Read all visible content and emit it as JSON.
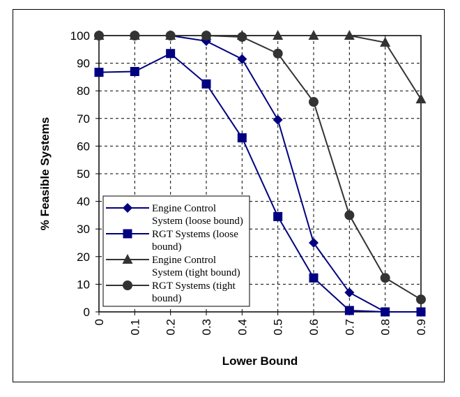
{
  "chart_data": {
    "type": "line",
    "title": "",
    "xlabel": "Lower Bound",
    "ylabel": "% Feasible Systems",
    "x": [
      0,
      0.1,
      0.2,
      0.3,
      0.4,
      0.5,
      0.6,
      0.7,
      0.8,
      0.9
    ],
    "x_tick_labels": [
      "0",
      "0.1",
      "0.2",
      "0.3",
      "0.4",
      "0.5",
      "0.6",
      "0.7",
      "0.8",
      "0.9"
    ],
    "y_tick_labels": [
      "0",
      "10",
      "20",
      "30",
      "40",
      "50",
      "60",
      "70",
      "80",
      "90",
      "100"
    ],
    "ylim": [
      0,
      100
    ],
    "xlim": [
      0,
      0.9
    ],
    "grid": "dashed",
    "legend_position": "left",
    "series": [
      {
        "name": "Engine Control System (loose bound)",
        "legend_lines": [
          "Engine Control",
          "System (loose bound)"
        ],
        "marker": "diamond",
        "color": "#000080",
        "values": [
          100,
          100,
          100,
          98,
          91.5,
          69.5,
          25,
          7,
          0,
          0
        ]
      },
      {
        "name": "RGT Systems (loose bound)",
        "legend_lines": [
          "RGT Systems (loose",
          "bound)"
        ],
        "marker": "square",
        "color": "#000080",
        "values": [
          86.7,
          87,
          93.5,
          82.5,
          63,
          34.5,
          12.3,
          0.5,
          0,
          0
        ]
      },
      {
        "name": "Engine Control System (tight bound)",
        "legend_lines": [
          "Engine Control",
          "System (tight bound)"
        ],
        "marker": "triangle",
        "color": "#333333",
        "values": [
          100,
          100,
          100,
          100,
          100,
          100,
          100,
          100,
          97.5,
          77
        ]
      },
      {
        "name": "RGT Systems (tight bound)",
        "legend_lines": [
          "RGT Systems (tight",
          "bound)"
        ],
        "marker": "circle",
        "color": "#333333",
        "values": [
          100,
          100,
          100,
          100,
          99.5,
          93.5,
          76,
          35,
          12.3,
          4.5
        ]
      }
    ]
  }
}
